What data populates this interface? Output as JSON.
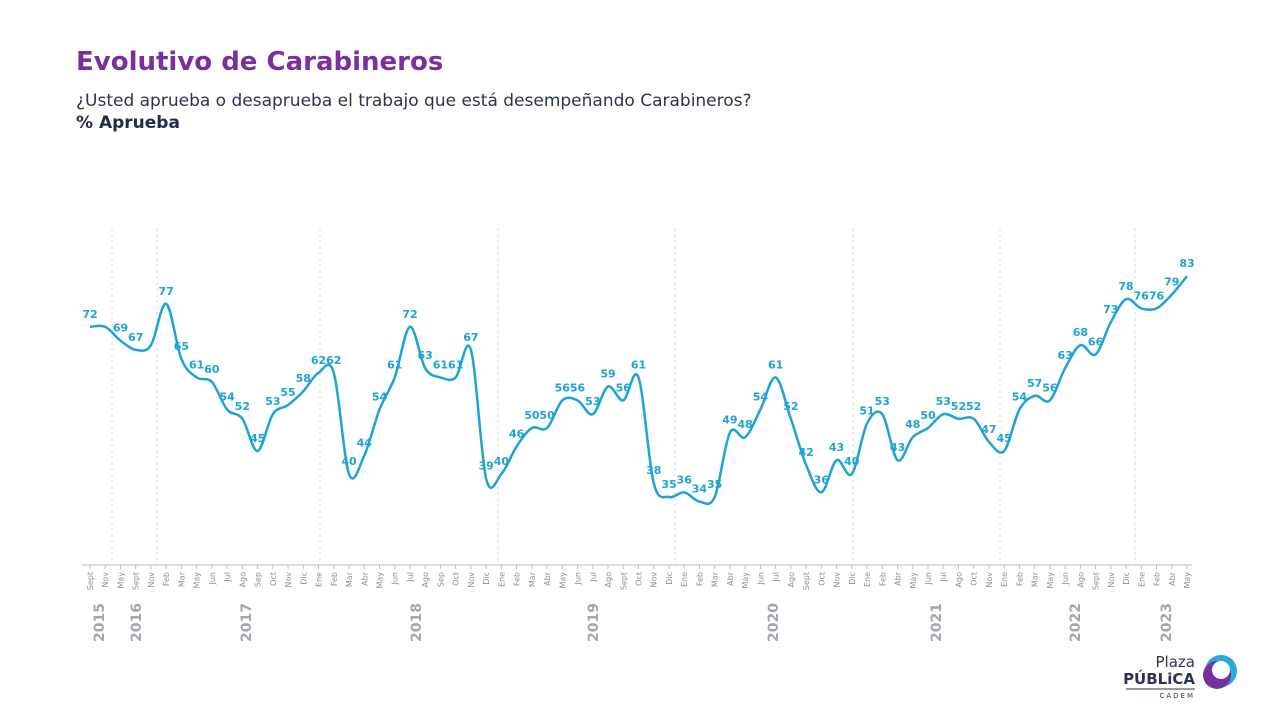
{
  "chart_data": {
    "type": "line",
    "title": "Evolutivo de Carabineros",
    "subtitle": "¿Usted aprueba o desaprueba el trabajo que está desempeñando Carabineros?",
    "y_label": "% Aprueba",
    "years": [
      "2015",
      "2016",
      "2017",
      "2018",
      "2019",
      "2020",
      "2021",
      "2022",
      "2023"
    ],
    "categories": [
      "Sept",
      "Nov",
      "May",
      "Sept",
      "Nov",
      "Feb",
      "Mar",
      "May",
      "Jun",
      "Jul",
      "Ago",
      "Sep",
      "Oct",
      "Nov",
      "Dic",
      "Ene",
      "Feb",
      "Mar",
      "Abr",
      "May",
      "Jun",
      "Jul",
      "Ago",
      "Sep",
      "Oct",
      "Nov",
      "Dic",
      "Ene",
      "Feb",
      "Mar",
      "Abr",
      "May",
      "Jun",
      "Jul",
      "Ago",
      "Sept",
      "Oct",
      "Nov",
      "Dic",
      "Ene",
      "Feb",
      "Mar",
      "Abr",
      "May",
      "Jun",
      "Jul",
      "Ago",
      "Sept",
      "Oct",
      "Nov",
      "Dic",
      "Ene",
      "Feb",
      "Abr",
      "May",
      "Jun",
      "Jul",
      "Ago",
      "Oct",
      "Nov",
      "Ene",
      "Feb",
      "Mar",
      "May",
      "Jun",
      "Ago",
      "Sept",
      "Nov",
      "Dic",
      "Ene",
      "Feb",
      "Abr",
      "May"
    ],
    "series": [
      {
        "name": "% Aprueba",
        "color": "#1ea3d4",
        "values": [
          72,
          72,
          69,
          67,
          68,
          77,
          65,
          61,
          60,
          54,
          52,
          45,
          53,
          55,
          58,
          62,
          62,
          40,
          44,
          54,
          61,
          72,
          63,
          61,
          61,
          67,
          39,
          40,
          46,
          50,
          50,
          56,
          56,
          53,
          59,
          56,
          61,
          38,
          35,
          36,
          34,
          35,
          49,
          48,
          54,
          61,
          52,
          42,
          36,
          43,
          40,
          51,
          53,
          43,
          48,
          50,
          53,
          52,
          52,
          47,
          45,
          54,
          57,
          56,
          63,
          68,
          66,
          73,
          78,
          76,
          76,
          79,
          83
        ],
        "value_labels": [
          "72",
          null,
          "69",
          "67",
          null,
          "77",
          "65",
          "61",
          "60",
          "54",
          "52",
          "45",
          "53",
          "55",
          "58",
          "62",
          "62",
          "40",
          "44",
          "54",
          "61",
          "72",
          "63",
          "61",
          "61",
          "67",
          "39",
          "40",
          "46",
          "50",
          "50",
          "56",
          "56",
          "53",
          "59",
          "56",
          "61",
          "38",
          "35",
          "36",
          "34",
          "35",
          "49",
          "48",
          "54",
          "61",
          "52",
          "42",
          "36",
          "43",
          "40",
          "51",
          "53",
          "43",
          "48",
          "50",
          "53",
          "52",
          "52",
          "47",
          "45",
          "54",
          "57",
          "56",
          "63",
          "68",
          "66",
          "73",
          "78",
          "76",
          "76",
          "79",
          "83"
        ]
      }
    ],
    "ylim": [
      30,
      90
    ]
  },
  "logo": {
    "line1": "Plaza",
    "line2": "PÚBLiCA",
    "line3": "CADEM"
  }
}
